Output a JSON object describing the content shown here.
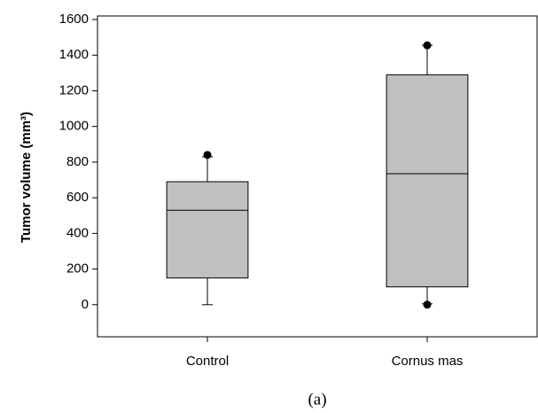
{
  "chart_data": {
    "type": "box",
    "ylabel": "Tumor volume (mm³)",
    "caption": "(a)",
    "categories": [
      "Control",
      "Cornus mas"
    ],
    "boxes": [
      {
        "whislo": 0,
        "q1": 150,
        "med": 530,
        "q3": 690,
        "whishi": 830,
        "fliers": [
          840
        ]
      },
      {
        "whislo": 5,
        "q1": 100,
        "med": 735,
        "q3": 1290,
        "whishi": 1455,
        "fliers": [
          0,
          1455
        ]
      }
    ],
    "color": "#c0c0c0",
    "ylim": [
      -180,
      1620
    ],
    "yticks": [
      0,
      200,
      400,
      600,
      800,
      1000,
      1200,
      1400,
      1600
    ]
  }
}
